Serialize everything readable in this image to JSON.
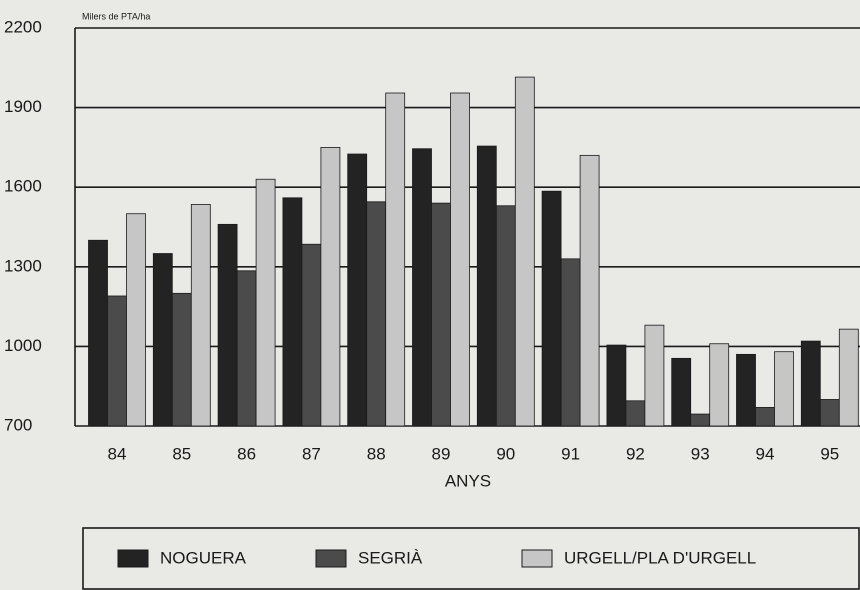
{
  "chart_data": {
    "type": "bar",
    "y_axis_label": "Milers de PTA/ha",
    "x_axis_label": "ANYS",
    "categories": [
      "84",
      "85",
      "86",
      "87",
      "88",
      "89",
      "90",
      "91",
      "92",
      "93",
      "94",
      "95"
    ],
    "series": [
      {
        "name": "NOGUERA",
        "color": "#232323",
        "values": [
          1400,
          1350,
          1460,
          1560,
          1725,
          1745,
          1755,
          1585,
          1005,
          955,
          970,
          1020
        ]
      },
      {
        "name": "SEGRIÀ",
        "color": "#4b4b4b",
        "values": [
          1190,
          1200,
          1285,
          1385,
          1545,
          1540,
          1530,
          1330,
          795,
          745,
          770,
          800
        ]
      },
      {
        "name": "URGELL/PLA D'URGELL",
        "color": "#c6c6c6",
        "values": [
          1500,
          1535,
          1630,
          1750,
          1955,
          1955,
          2015,
          1720,
          1080,
          1010,
          980,
          1065
        ]
      }
    ],
    "ylim": [
      700,
      2200
    ],
    "yticks": [
      700,
      1000,
      1300,
      1600,
      1900,
      2200
    ],
    "grid": true,
    "legend": "bottom"
  }
}
